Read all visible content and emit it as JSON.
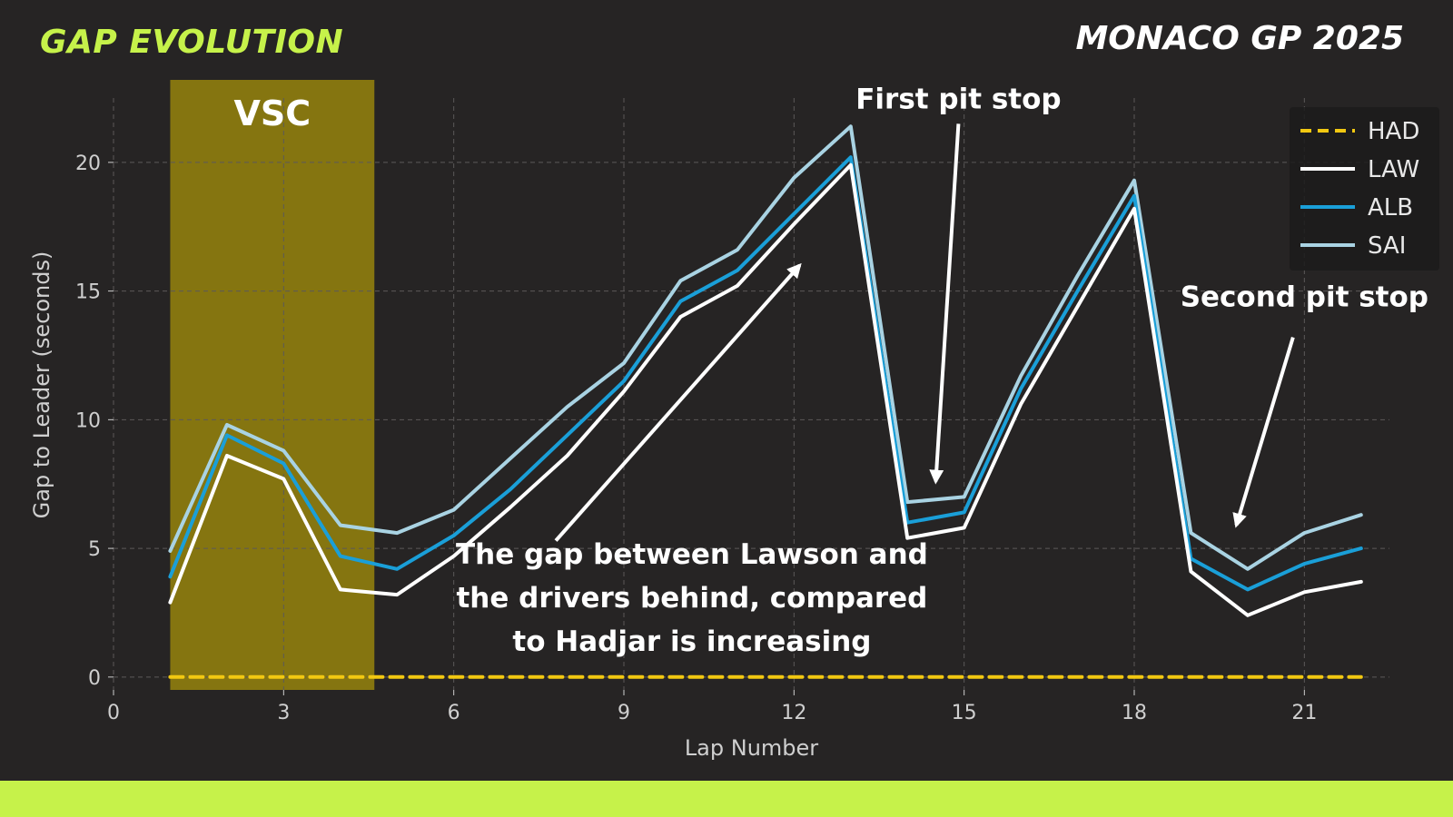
{
  "header": {
    "section_title": "GAP EVOLUTION",
    "event_title": "MONACO GP 2025"
  },
  "colors": {
    "background": "#262424",
    "accent": "#c6f24a",
    "vsc_band": "#8a7a10",
    "had": "#f2c811",
    "law": "#ffffff",
    "alb": "#1a9fd8",
    "sai": "#a9d3e3"
  },
  "chart_data": {
    "type": "line",
    "title": "",
    "xlabel": "Lap Number",
    "ylabel": "Gap to Leader (seconds)",
    "xlim": [
      0,
      22.5
    ],
    "ylim": [
      -0.5,
      22.5
    ],
    "xticks": [
      0,
      3,
      6,
      9,
      12,
      15,
      18,
      21
    ],
    "yticks": [
      0,
      5,
      10,
      15,
      20
    ],
    "grid": true,
    "legend_position": "top-right",
    "x": [
      1,
      2,
      3,
      4,
      5,
      6,
      7,
      8,
      9,
      10,
      11,
      12,
      13,
      14,
      15,
      16,
      17,
      18,
      19,
      20,
      21,
      22
    ],
    "series": [
      {
        "name": "HAD",
        "color": "#f2c811",
        "dashed": true,
        "values": [
          0,
          0,
          0,
          0,
          0,
          0,
          0,
          0,
          0,
          0,
          0,
          0,
          0,
          0,
          0,
          0,
          0,
          0,
          0,
          0,
          0,
          0
        ]
      },
      {
        "name": "LAW",
        "color": "#ffffff",
        "dashed": false,
        "values": [
          2.9,
          8.6,
          7.7,
          3.4,
          3.2,
          4.7,
          6.6,
          8.6,
          11.1,
          14.0,
          15.2,
          17.6,
          19.9,
          5.4,
          5.8,
          10.6,
          14.4,
          18.2,
          4.1,
          2.4,
          3.3,
          3.7
        ]
      },
      {
        "name": "ALB",
        "color": "#1a9fd8",
        "dashed": false,
        "values": [
          3.9,
          9.4,
          8.3,
          4.7,
          4.2,
          5.5,
          7.3,
          9.4,
          11.5,
          14.6,
          15.8,
          18.0,
          20.2,
          6.0,
          6.4,
          11.2,
          15.0,
          18.7,
          4.6,
          3.4,
          4.4,
          5.0
        ]
      },
      {
        "name": "SAI",
        "color": "#a9d3e3",
        "dashed": false,
        "values": [
          4.9,
          9.8,
          8.8,
          5.9,
          5.6,
          6.5,
          8.5,
          10.5,
          12.2,
          15.4,
          16.6,
          19.4,
          21.4,
          6.8,
          7.0,
          11.7,
          15.6,
          19.3,
          5.6,
          4.2,
          5.6,
          6.3
        ]
      }
    ],
    "shaded_regions": [
      {
        "label": "VSC",
        "x_start": 1,
        "x_end": 4.6
      }
    ],
    "annotations": [
      {
        "text": "First pit stop",
        "lines": [
          "First pit stop"
        ],
        "text_at": [
          14.9,
          22.1
        ],
        "arrow_from": [
          14.9,
          21.5
        ],
        "arrow_to": [
          14.5,
          7.6
        ]
      },
      {
        "text": "Second pit stop",
        "lines": [
          "Second pit stop"
        ],
        "text_at": [
          21.0,
          14.4
        ],
        "arrow_from": [
          20.8,
          13.2
        ],
        "arrow_to": [
          19.8,
          5.9
        ]
      },
      {
        "text": "The gap between Lawson and the drivers behind, compared to Hadjar is increasing",
        "lines": [
          "The gap between Lawson and",
          "the drivers behind, compared",
          "to Hadjar is increasing"
        ],
        "text_at": [
          10.2,
          4.4
        ],
        "arrow_from": [
          7.8,
          5.3
        ],
        "arrow_to": [
          12.1,
          16.0
        ]
      }
    ]
  }
}
